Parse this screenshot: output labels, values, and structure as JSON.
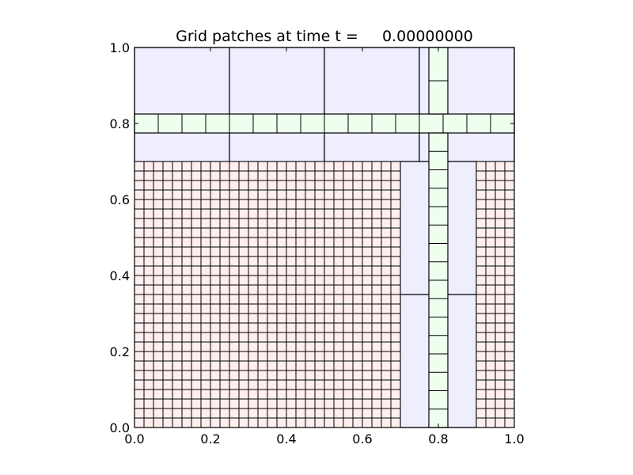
{
  "chart_data": {
    "type": "heatmap",
    "title": "Grid patches at time t =     0.00000000",
    "xlim": [
      0.0,
      1.0
    ],
    "ylim": [
      0.0,
      1.0
    ],
    "xticks": [
      0.0,
      0.2,
      0.4,
      0.6,
      0.8,
      1.0
    ],
    "xtick_labels": [
      "0.0",
      "0.2",
      "0.4",
      "0.6",
      "0.8",
      "1.0"
    ],
    "yticks": [
      0.0,
      0.2,
      0.4,
      0.6,
      0.8,
      1.0
    ],
    "ytick_labels": [
      "0.0",
      "0.2",
      "0.4",
      "0.6",
      "0.8",
      "1.0"
    ],
    "grid": false,
    "colors": {
      "level1": "#eeeeff",
      "level2": "#eeffee",
      "level3": "#ffeeee",
      "edge": "#000000"
    },
    "patches": [
      {
        "level": 1,
        "x": [
          0.0,
          0.25
        ],
        "y": [
          0.7,
          1.0
        ],
        "nx": 1,
        "ny": 1
      },
      {
        "level": 1,
        "x": [
          0.25,
          0.5
        ],
        "y": [
          0.7,
          1.0
        ],
        "nx": 1,
        "ny": 1
      },
      {
        "level": 1,
        "x": [
          0.5,
          0.75
        ],
        "y": [
          0.7,
          1.0
        ],
        "nx": 1,
        "ny": 1
      },
      {
        "level": 1,
        "x": [
          0.75,
          1.0
        ],
        "y": [
          0.7,
          1.0
        ],
        "nx": 1,
        "ny": 1
      },
      {
        "level": 1,
        "x": [
          0.7,
          0.9
        ],
        "y": [
          0.0,
          0.35
        ],
        "nx": 1,
        "ny": 1
      },
      {
        "level": 1,
        "x": [
          0.7,
          0.9
        ],
        "y": [
          0.35,
          0.7
        ],
        "nx": 1,
        "ny": 1
      },
      {
        "level": 3,
        "x": [
          0.0,
          0.7
        ],
        "y": [
          0.0,
          0.7
        ],
        "nx": 28,
        "ny": 28
      },
      {
        "level": 3,
        "x": [
          0.9,
          1.0
        ],
        "y": [
          0.0,
          0.7
        ],
        "nx": 4,
        "ny": 28
      },
      {
        "level": 2,
        "x": [
          0.0,
          1.0
        ],
        "y": [
          0.775,
          0.825
        ],
        "nx": 16,
        "ny": 1
      },
      {
        "level": 2,
        "x": [
          0.775,
          0.825
        ],
        "y": [
          0.825,
          1.0
        ],
        "nx": 1,
        "ny": 2
      },
      {
        "level": 2,
        "x": [
          0.775,
          0.825
        ],
        "y": [
          0.0,
          0.775
        ],
        "nx": 1,
        "ny": 16
      }
    ]
  }
}
